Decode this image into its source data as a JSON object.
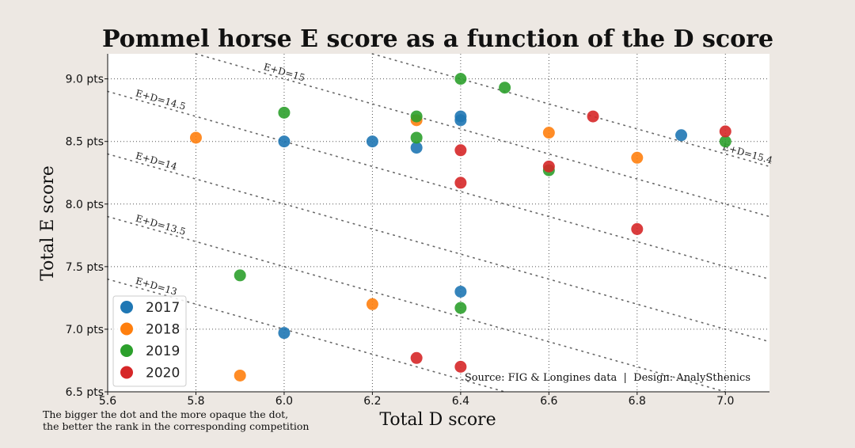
{
  "title": "Pommel horse E score as a function of the D score",
  "note": {
    "line1": "The bigger the dot and the more opaque the dot,",
    "line2": "the better the rank in the corresponding competition"
  },
  "source": "Source: FIG & Longines data  |  Design: AnalySthenics",
  "chart_data": {
    "type": "scatter",
    "xlabel": "Total D score",
    "ylabel": "Total E score",
    "xlim": [
      5.6,
      7.1
    ],
    "ylim": [
      6.5,
      9.2
    ],
    "x_ticks": [
      5.6,
      5.8,
      6.0,
      6.2,
      6.4,
      6.6,
      6.8,
      7.0
    ],
    "x_tick_labels": [
      "5.6",
      "5.8",
      "6.0",
      "6.2",
      "6.4",
      "6.6",
      "6.8",
      "7.0"
    ],
    "y_ticks": [
      6.5,
      7.0,
      7.5,
      8.0,
      8.5,
      9.0
    ],
    "y_tick_labels": [
      "6.5 pts",
      "7.0 pts",
      "7.5 pts",
      "8.0 pts",
      "8.5 pts",
      "9.0 pts"
    ],
    "grid": true,
    "legend_position": "bottom-left",
    "iso_lines": [
      {
        "sum": 13,
        "label": "E+D=13"
      },
      {
        "sum": 13.5,
        "label": "E+D=13.5"
      },
      {
        "sum": 14,
        "label": "E+D=14"
      },
      {
        "sum": 14.5,
        "label": "E+D=14.5"
      },
      {
        "sum": 15,
        "label": "E+D=15"
      },
      {
        "sum": 15.4,
        "label": "E+D=15.4"
      }
    ],
    "series": [
      {
        "name": "2017",
        "color": "#1f77b4",
        "points": [
          {
            "x": 6.0,
            "y": 8.5
          },
          {
            "x": 6.2,
            "y": 8.5
          },
          {
            "x": 6.3,
            "y": 8.45
          },
          {
            "x": 6.4,
            "y": 8.7
          },
          {
            "x": 6.4,
            "y": 8.67
          },
          {
            "x": 6.9,
            "y": 8.55
          },
          {
            "x": 6.4,
            "y": 7.3
          },
          {
            "x": 6.0,
            "y": 6.97
          }
        ]
      },
      {
        "name": "2018",
        "color": "#ff7f0e",
        "points": [
          {
            "x": 5.8,
            "y": 8.53
          },
          {
            "x": 6.3,
            "y": 8.67
          },
          {
            "x": 6.6,
            "y": 8.57
          },
          {
            "x": 6.8,
            "y": 8.37
          },
          {
            "x": 6.2,
            "y": 7.2
          },
          {
            "x": 5.9,
            "y": 6.63
          }
        ]
      },
      {
        "name": "2019",
        "color": "#2ca02c",
        "points": [
          {
            "x": 6.0,
            "y": 8.73
          },
          {
            "x": 6.3,
            "y": 8.7
          },
          {
            "x": 6.3,
            "y": 8.53
          },
          {
            "x": 6.4,
            "y": 9.0
          },
          {
            "x": 6.5,
            "y": 8.93
          },
          {
            "x": 6.6,
            "y": 8.27
          },
          {
            "x": 7.0,
            "y": 8.5
          },
          {
            "x": 5.9,
            "y": 7.43
          },
          {
            "x": 6.4,
            "y": 7.17
          }
        ]
      },
      {
        "name": "2020",
        "color": "#d62728",
        "points": [
          {
            "x": 6.4,
            "y": 8.43
          },
          {
            "x": 6.4,
            "y": 8.17
          },
          {
            "x": 6.6,
            "y": 8.3
          },
          {
            "x": 6.7,
            "y": 8.7
          },
          {
            "x": 7.0,
            "y": 8.58
          },
          {
            "x": 6.8,
            "y": 7.8
          },
          {
            "x": 6.3,
            "y": 6.77
          },
          {
            "x": 6.4,
            "y": 6.7
          }
        ]
      }
    ]
  }
}
